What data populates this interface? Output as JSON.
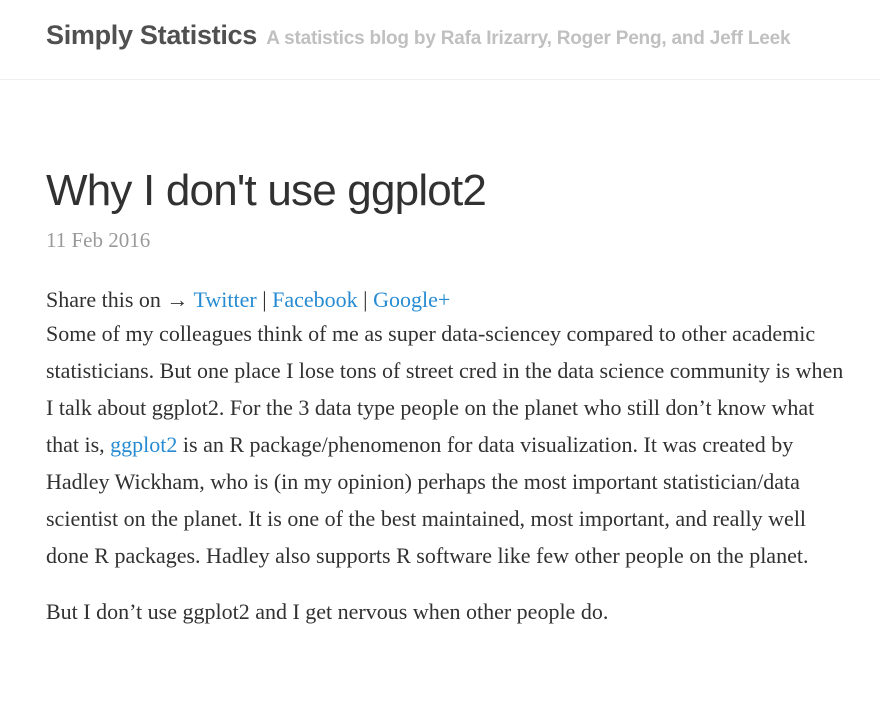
{
  "header": {
    "site_name": "Simply Statistics",
    "tagline": "A statistics blog by Rafa Irizarry, Roger Peng, and Jeff Leek"
  },
  "post": {
    "title": "Why I don't use ggplot2",
    "date": "11 Feb 2016",
    "share": {
      "prefix": "Share this on →",
      "twitter": "Twitter",
      "facebook": "Facebook",
      "google": "Google+",
      "separator": "|"
    },
    "para1": {
      "before_link": "Some of my colleagues think of me as super data-sciencey compared to other academic statisticians. But one place I lose tons of street cred in the data science community is when I talk about ggplot2. For the 3 data type people on the planet who still don’t know what that is,",
      "link": "ggplot2",
      "after_link": "is an R package/phenomenon for data visualization. It was created by Hadley Wickham, who is (in my opinion) perhaps the most important statistician/data scientist on the planet. It is one of the best maintained, most important, and really well done R packages. Hadley also supports R software like few other people on the planet."
    },
    "para2": "But I don’t use ggplot2 and I get nervous when other people do."
  },
  "colors": {
    "link": "#268bd2",
    "text": "#313131",
    "muted": "#9a9a9a",
    "tagline": "#c0c0c0"
  }
}
